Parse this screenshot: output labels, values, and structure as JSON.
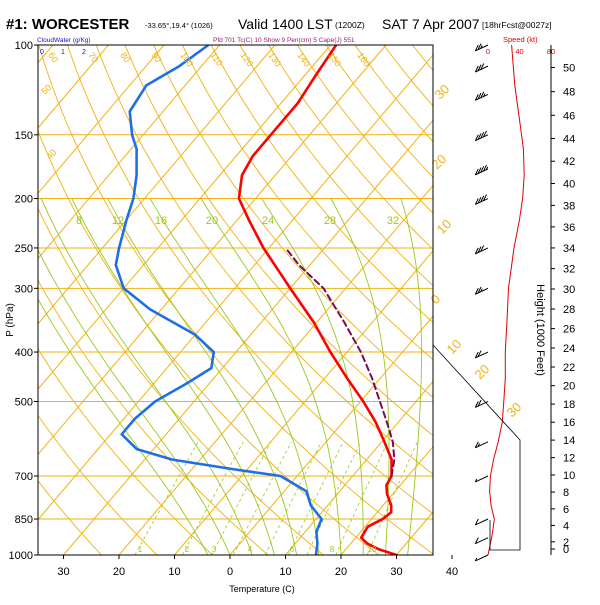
{
  "header": {
    "station": "#1: WORCESTER",
    "coords": "-33.65°,19.4° (1026)",
    "valid": "Valid 1400 LST",
    "utc": "(1200Z)",
    "date": "SAT 7 Apr 2007",
    "forecast": "[18hrFcst@0027z]"
  },
  "legend": {
    "cloudwater": "CloudWater (g/Kg)",
    "params": "Pfd 701 Tc(C) 10 Show 9 Pen(cm) 5 Cape(J) 551",
    "speed": "Speed (kt)"
  },
  "chart_data": {
    "type": "line",
    "title": "#1: WORCESTER Valid 1400 LST (1200Z) SAT 7 Apr 2007",
    "xlabel": "Temperature (C)",
    "ylabel": "P (hPa)",
    "right_axis_label": "Height (1000 Feet)",
    "x_ticks": [
      -30,
      -20,
      -10,
      0,
      10,
      20,
      30,
      40
    ],
    "x_tick_labels": [
      "30",
      "20",
      "10",
      "0",
      "10",
      "20",
      "30",
      "40"
    ],
    "p_ticks": [
      100,
      150,
      200,
      250,
      300,
      400,
      500,
      700,
      850,
      1000
    ],
    "height_ticks_kft": [
      0,
      2,
      4,
      6,
      8,
      10,
      12,
      14,
      16,
      18,
      20,
      22,
      24,
      26,
      28,
      30,
      32,
      34,
      36,
      38,
      40,
      42,
      44,
      46,
      48,
      50
    ],
    "cloudwater_ticks": [
      "0",
      "1",
      "2"
    ],
    "speed_ticks": [
      "0",
      "40",
      "80"
    ],
    "skew_labels": [
      "50",
      "40",
      "30",
      "20",
      "10",
      "0",
      "10",
      "20",
      "30"
    ],
    "mixing_ratio_labels": [
      "8",
      "12",
      "16",
      "20",
      "24",
      "28",
      "32"
    ],
    "dry_adiabat_labels": [
      "60",
      "70",
      "80",
      "90",
      "100",
      "110",
      "120",
      "130",
      "140",
      "150",
      "160"
    ],
    "moist_adiabat_labels": [
      "1",
      "2",
      "3",
      "4",
      "6",
      "8",
      "10",
      "14",
      "20"
    ],
    "series": [
      {
        "name": "Temperature",
        "color": "#ff0000",
        "points": [
          {
            "p": 1000,
            "t": 30
          },
          {
            "p": 975,
            "t": 26
          },
          {
            "p": 950,
            "t": 23
          },
          {
            "p": 925,
            "t": 21
          },
          {
            "p": 880,
            "t": 20.5
          },
          {
            "p": 850,
            "t": 22
          },
          {
            "p": 825,
            "t": 22.5
          },
          {
            "p": 800,
            "t": 21.5
          },
          {
            "p": 760,
            "t": 19
          },
          {
            "p": 730,
            "t": 17.5
          },
          {
            "p": 700,
            "t": 17
          },
          {
            "p": 650,
            "t": 14.5
          },
          {
            "p": 600,
            "t": 10.5
          },
          {
            "p": 550,
            "t": 6
          },
          {
            "p": 500,
            "t": 0.5
          },
          {
            "p": 450,
            "t": -6
          },
          {
            "p": 400,
            "t": -13
          },
          {
            "p": 350,
            "t": -20.5
          },
          {
            "p": 300,
            "t": -30
          },
          {
            "p": 250,
            "t": -41
          },
          {
            "p": 220,
            "t": -48
          },
          {
            "p": 200,
            "t": -53
          },
          {
            "p": 180,
            "t": -56
          },
          {
            "p": 165,
            "t": -57
          },
          {
            "p": 150,
            "t": -57
          },
          {
            "p": 130,
            "t": -57
          },
          {
            "p": 115,
            "t": -58
          },
          {
            "p": 100,
            "t": -59
          }
        ]
      },
      {
        "name": "Dewpoint",
        "color": "#1e6fe6",
        "points": [
          {
            "p": 1000,
            "t": 15.5
          },
          {
            "p": 950,
            "t": 14
          },
          {
            "p": 900,
            "t": 12
          },
          {
            "p": 850,
            "t": 11
          },
          {
            "p": 800,
            "t": 7
          },
          {
            "p": 750,
            "t": 4
          },
          {
            "p": 700,
            "t": -3
          },
          {
            "p": 680,
            "t": -12
          },
          {
            "p": 650,
            "t": -25
          },
          {
            "p": 620,
            "t": -33
          },
          {
            "p": 580,
            "t": -38
          },
          {
            "p": 540,
            "t": -38
          },
          {
            "p": 500,
            "t": -37
          },
          {
            "p": 460,
            "t": -34
          },
          {
            "p": 430,
            "t": -32
          },
          {
            "p": 400,
            "t": -34
          },
          {
            "p": 370,
            "t": -40
          },
          {
            "p": 330,
            "t": -52
          },
          {
            "p": 300,
            "t": -60
          },
          {
            "p": 270,
            "t": -65
          },
          {
            "p": 250,
            "t": -67
          },
          {
            "p": 220,
            "t": -70
          },
          {
            "p": 200,
            "t": -72
          },
          {
            "p": 180,
            "t": -75
          },
          {
            "p": 160,
            "t": -79
          },
          {
            "p": 150,
            "t": -82
          },
          {
            "p": 135,
            "t": -86
          },
          {
            "p": 120,
            "t": -87
          },
          {
            "p": 110,
            "t": -84
          },
          {
            "p": 100,
            "t": -82
          }
        ]
      },
      {
        "name": "Parcel",
        "color": "#7a0a55",
        "dashed": true,
        "points": [
          {
            "p": 700,
            "t": 17
          },
          {
            "p": 650,
            "t": 15
          },
          {
            "p": 600,
            "t": 12
          },
          {
            "p": 550,
            "t": 8
          },
          {
            "p": 500,
            "t": 3.5
          },
          {
            "p": 450,
            "t": -1.5
          },
          {
            "p": 400,
            "t": -7.5
          },
          {
            "p": 350,
            "t": -15
          },
          {
            "p": 300,
            "t": -24
          },
          {
            "p": 270,
            "t": -32
          },
          {
            "p": 250,
            "t": -37
          }
        ]
      }
    ],
    "wind_speed_profile": [
      {
        "p": 1000,
        "kt": 0
      },
      {
        "p": 950,
        "kt": 3
      },
      {
        "p": 900,
        "kt": 6
      },
      {
        "p": 850,
        "kt": 8
      },
      {
        "p": 800,
        "kt": 4
      },
      {
        "p": 750,
        "kt": 2
      },
      {
        "p": 700,
        "kt": 3
      },
      {
        "p": 650,
        "kt": 7
      },
      {
        "p": 600,
        "kt": 13
      },
      {
        "p": 550,
        "kt": 18
      },
      {
        "p": 500,
        "kt": 20
      },
      {
        "p": 450,
        "kt": 22
      },
      {
        "p": 400,
        "kt": 22
      },
      {
        "p": 350,
        "kt": 24
      },
      {
        "p": 300,
        "kt": 26
      },
      {
        "p": 250,
        "kt": 33
      },
      {
        "p": 220,
        "kt": 40
      },
      {
        "p": 200,
        "kt": 44
      },
      {
        "p": 180,
        "kt": 46
      },
      {
        "p": 160,
        "kt": 45
      },
      {
        "p": 140,
        "kt": 40
      },
      {
        "p": 120,
        "kt": 34
      },
      {
        "p": 100,
        "kt": 30
      }
    ],
    "wind_barb_speeds_kt": [
      {
        "p": 1000,
        "kt": 5
      },
      {
        "p": 925,
        "kt": 10
      },
      {
        "p": 850,
        "kt": 10
      },
      {
        "p": 700,
        "kt": 5
      },
      {
        "p": 600,
        "kt": 15
      },
      {
        "p": 500,
        "kt": 20
      },
      {
        "p": 400,
        "kt": 20
      },
      {
        "p": 300,
        "kt": 25
      },
      {
        "p": 250,
        "kt": 30
      },
      {
        "p": 200,
        "kt": 40
      },
      {
        "p": 175,
        "kt": 45
      },
      {
        "p": 150,
        "kt": 40
      },
      {
        "p": 125,
        "kt": 35
      },
      {
        "p": 110,
        "kt": 30
      },
      {
        "p": 100,
        "kt": 25
      }
    ],
    "grid": true
  }
}
